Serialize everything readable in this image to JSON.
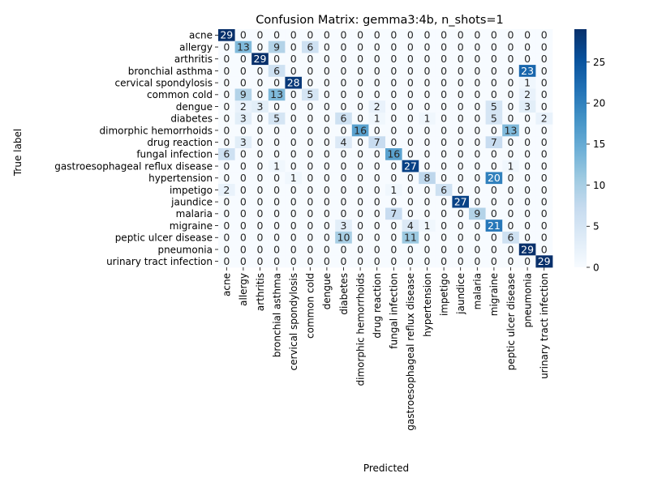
{
  "chart_data": {
    "type": "heatmap",
    "title": "Confusion Matrix: gemma3:4b, n_shots=1",
    "xlabel": "Predicted",
    "ylabel": "True label",
    "labels": [
      "acne",
      "allergy",
      "arthritis",
      "bronchial asthma",
      "cervical spondylosis",
      "common cold",
      "dengue",
      "diabetes",
      "dimorphic hemorrhoids",
      "drug reaction",
      "fungal infection",
      "gastroesophageal reflux disease",
      "hypertension",
      "impetigo",
      "jaundice",
      "malaria",
      "migraine",
      "peptic ulcer disease",
      "pneumonia",
      "urinary tract infection"
    ],
    "matrix": [
      [
        29,
        0,
        0,
        0,
        0,
        0,
        0,
        0,
        0,
        0,
        0,
        0,
        0,
        0,
        0,
        0,
        0,
        0,
        0,
        0
      ],
      [
        0,
        13,
        0,
        9,
        0,
        6,
        0,
        0,
        0,
        0,
        0,
        0,
        0,
        0,
        0,
        0,
        0,
        0,
        0,
        0
      ],
      [
        0,
        0,
        29,
        0,
        0,
        0,
        0,
        0,
        0,
        0,
        0,
        0,
        0,
        0,
        0,
        0,
        0,
        0,
        0,
        0
      ],
      [
        0,
        0,
        0,
        6,
        0,
        0,
        0,
        0,
        0,
        0,
        0,
        0,
        0,
        0,
        0,
        0,
        0,
        0,
        23,
        0
      ],
      [
        0,
        0,
        0,
        0,
        28,
        0,
        0,
        0,
        0,
        0,
        0,
        0,
        0,
        0,
        0,
        0,
        0,
        0,
        1,
        0
      ],
      [
        0,
        9,
        0,
        13,
        0,
        5,
        0,
        0,
        0,
        0,
        0,
        0,
        0,
        0,
        0,
        0,
        0,
        0,
        2,
        0
      ],
      [
        0,
        2,
        3,
        0,
        0,
        0,
        0,
        0,
        0,
        2,
        0,
        0,
        0,
        0,
        0,
        0,
        5,
        0,
        3,
        0
      ],
      [
        0,
        3,
        0,
        5,
        0,
        0,
        0,
        6,
        0,
        1,
        0,
        0,
        1,
        0,
        0,
        0,
        5,
        0,
        0,
        2
      ],
      [
        0,
        0,
        0,
        0,
        0,
        0,
        0,
        0,
        16,
        0,
        0,
        0,
        0,
        0,
        0,
        0,
        0,
        13,
        0,
        0
      ],
      [
        0,
        3,
        0,
        0,
        0,
        0,
        0,
        4,
        0,
        7,
        0,
        0,
        0,
        0,
        0,
        0,
        7,
        0,
        0,
        0
      ],
      [
        6,
        0,
        0,
        0,
        0,
        0,
        0,
        0,
        0,
        0,
        16,
        0,
        0,
        0,
        0,
        0,
        0,
        0,
        0,
        0
      ],
      [
        0,
        0,
        0,
        1,
        0,
        0,
        0,
        0,
        0,
        0,
        0,
        27,
        0,
        0,
        0,
        0,
        0,
        1,
        0,
        0
      ],
      [
        0,
        0,
        0,
        0,
        1,
        0,
        0,
        0,
        0,
        0,
        0,
        0,
        8,
        0,
        0,
        0,
        20,
        0,
        0,
        0
      ],
      [
        2,
        0,
        0,
        0,
        0,
        0,
        0,
        0,
        0,
        0,
        1,
        0,
        0,
        6,
        0,
        0,
        0,
        0,
        0,
        0
      ],
      [
        0,
        0,
        0,
        0,
        0,
        0,
        0,
        0,
        0,
        0,
        0,
        0,
        0,
        0,
        27,
        0,
        0,
        0,
        0,
        0
      ],
      [
        0,
        0,
        0,
        0,
        0,
        0,
        0,
        0,
        0,
        0,
        7,
        0,
        0,
        0,
        0,
        9,
        0,
        0,
        0,
        0
      ],
      [
        0,
        0,
        0,
        0,
        0,
        0,
        0,
        3,
        0,
        0,
        0,
        4,
        1,
        0,
        0,
        0,
        21,
        0,
        0,
        0
      ],
      [
        0,
        0,
        0,
        0,
        0,
        0,
        0,
        10,
        0,
        0,
        0,
        11,
        0,
        0,
        0,
        0,
        0,
        6,
        0,
        0
      ],
      [
        0,
        0,
        0,
        0,
        0,
        0,
        0,
        0,
        0,
        0,
        0,
        0,
        0,
        0,
        0,
        0,
        0,
        0,
        29,
        0
      ],
      [
        0,
        0,
        0,
        0,
        0,
        0,
        0,
        0,
        0,
        0,
        0,
        0,
        0,
        0,
        0,
        0,
        0,
        0,
        0,
        29
      ]
    ],
    "vmin": 0,
    "vmax": 29,
    "colorbar_ticks": [
      0,
      5,
      10,
      15,
      20,
      25
    ],
    "colormap": [
      "#f7fbff",
      "#deebf7",
      "#c6dbef",
      "#9ecae1",
      "#6baed6",
      "#4292c6",
      "#2171b5",
      "#08519c",
      "#08306b"
    ],
    "grid": false
  }
}
